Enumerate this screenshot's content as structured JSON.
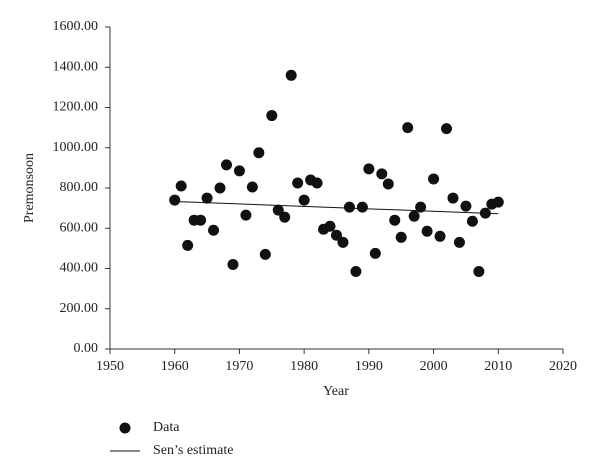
{
  "chart_data": {
    "type": "scatter",
    "x_label": "Year",
    "y_label": "Premonsoon",
    "xlim": [
      1950,
      2020
    ],
    "xticks": [
      1950,
      1960,
      1970,
      1980,
      1990,
      2000,
      2010,
      2020
    ],
    "ylim": [
      0,
      1600
    ],
    "yticks": [
      {
        "value": 0,
        "label": "0.00"
      },
      {
        "value": 200,
        "label": "200.00"
      },
      {
        "value": 400,
        "label": "400.00"
      },
      {
        "value": 600,
        "label": "600.00"
      },
      {
        "value": 800,
        "label": "800.00"
      },
      {
        "value": 1000,
        "label": "1000.00"
      },
      {
        "value": 1200,
        "label": "1200.00"
      },
      {
        "value": 1400,
        "label": "1400.00"
      },
      {
        "value": 1600,
        "label": "1600.00"
      }
    ],
    "grid": false,
    "legend": "bottom",
    "series": [
      {
        "name": "Data",
        "type": "scatter",
        "color": "#111111",
        "x": [
          1960,
          1961,
          1962,
          1963,
          1964,
          1965,
          1966,
          1967,
          1968,
          1969,
          1970,
          1971,
          1972,
          1973,
          1974,
          1975,
          1976,
          1977,
          1978,
          1979,
          1980,
          1981,
          1982,
          1983,
          1984,
          1985,
          1986,
          1987,
          1988,
          1989,
          1990,
          1991,
          1992,
          1993,
          1994,
          1995,
          1996,
          1997,
          1998,
          1999,
          2000,
          2001,
          2002,
          2003,
          2004,
          2005,
          2006,
          2007,
          2008,
          2009,
          2010
        ],
        "values": [
          740,
          810,
          515,
          640,
          640,
          750,
          590,
          800,
          915,
          420,
          885,
          665,
          805,
          975,
          470,
          1160,
          690,
          655,
          1360,
          825,
          740,
          840,
          825,
          595,
          610,
          565,
          530,
          705,
          385,
          705,
          895,
          475,
          870,
          820,
          640,
          555,
          1100,
          660,
          705,
          585,
          845,
          560,
          1095,
          750,
          530,
          710,
          635,
          385,
          675,
          720,
          730
        ]
      },
      {
        "name": "Sen’s estimate",
        "type": "line",
        "color": "#111111",
        "x": [
          1960,
          2010
        ],
        "values": [
          733,
          672
        ]
      }
    ]
  }
}
